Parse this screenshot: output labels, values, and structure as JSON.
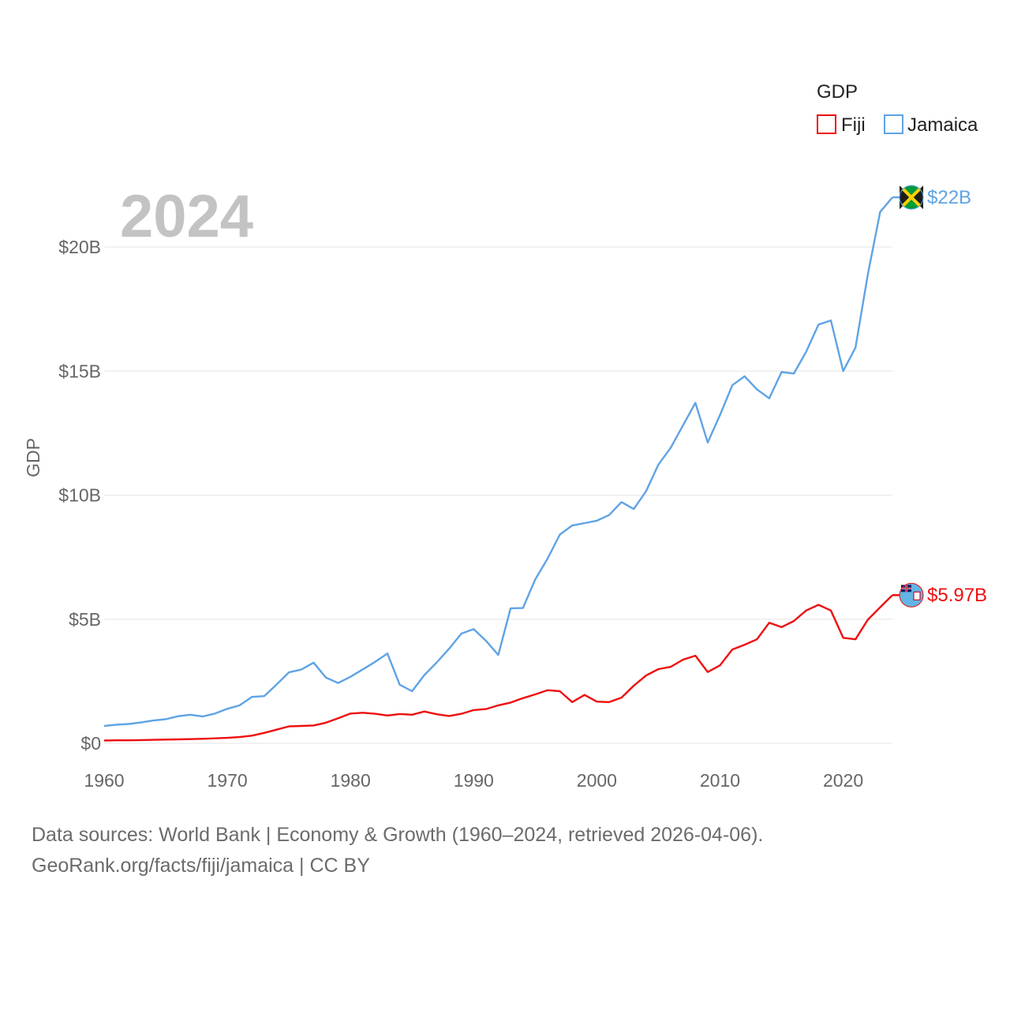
{
  "colors": {
    "fiji": "#ee0e0e",
    "jamaica": "#5fa3e4",
    "grid": "#e6e6e6",
    "tick": "#666666",
    "year": "#c3c3c3"
  },
  "chart_data": {
    "type": "line",
    "title": "",
    "year_label": "2024",
    "ylabel": "GDP",
    "xlabel": "",
    "xlim": [
      1960,
      2024
    ],
    "ylim": [
      0,
      22000000000
    ],
    "x_ticks": [
      1960,
      1970,
      1980,
      1990,
      2000,
      2010,
      2020
    ],
    "x_tick_labels": [
      "1960",
      "1970",
      "1980",
      "1990",
      "2000",
      "2010",
      "2020"
    ],
    "y_ticks": [
      0,
      5000000000,
      10000000000,
      15000000000,
      20000000000
    ],
    "y_tick_labels": [
      "$0",
      "$5B",
      "$10B",
      "$15B",
      "$20B"
    ],
    "legend": {
      "title": "GDP",
      "position": "top-right",
      "entries": [
        "Fiji",
        "Jamaica"
      ]
    },
    "x": [
      1960,
      1961,
      1962,
      1963,
      1964,
      1965,
      1966,
      1967,
      1968,
      1969,
      1970,
      1971,
      1972,
      1973,
      1974,
      1975,
      1976,
      1977,
      1978,
      1979,
      1980,
      1981,
      1982,
      1983,
      1984,
      1985,
      1986,
      1987,
      1988,
      1989,
      1990,
      1991,
      1992,
      1993,
      1994,
      1995,
      1996,
      1997,
      1998,
      1999,
      2000,
      2001,
      2002,
      2003,
      2004,
      2005,
      2006,
      2007,
      2008,
      2009,
      2010,
      2011,
      2012,
      2013,
      2014,
      2015,
      2016,
      2017,
      2018,
      2019,
      2020,
      2021,
      2022,
      2023,
      2024
    ],
    "series": [
      {
        "name": "Fiji",
        "color_key": "fiji",
        "end_label": "$5.97B",
        "flag": "fiji-flag-icon",
        "values": [
          0.11,
          0.12,
          0.12,
          0.13,
          0.14,
          0.15,
          0.16,
          0.17,
          0.18,
          0.2,
          0.22,
          0.25,
          0.31,
          0.42,
          0.55,
          0.68,
          0.7,
          0.72,
          0.83,
          1.01,
          1.2,
          1.23,
          1.19,
          1.12,
          1.18,
          1.15,
          1.28,
          1.17,
          1.1,
          1.19,
          1.34,
          1.38,
          1.53,
          1.64,
          1.82,
          1.97,
          2.14,
          2.1,
          1.66,
          1.95,
          1.68,
          1.66,
          1.84,
          2.32,
          2.73,
          2.99,
          3.08,
          3.37,
          3.53,
          2.87,
          3.14,
          3.78,
          3.97,
          4.19,
          4.86,
          4.68,
          4.93,
          5.35,
          5.58,
          5.35,
          4.25,
          4.19,
          4.98,
          5.48,
          5.97
        ]
      },
      {
        "name": "Jamaica",
        "color_key": "jamaica",
        "end_label": "$22B",
        "flag": "jamaica-flag-icon",
        "values": [
          0.7,
          0.75,
          0.78,
          0.84,
          0.92,
          0.97,
          1.09,
          1.15,
          1.08,
          1.2,
          1.39,
          1.53,
          1.87,
          1.9,
          2.37,
          2.86,
          2.97,
          3.25,
          2.65,
          2.43,
          2.68,
          2.98,
          3.28,
          3.62,
          2.36,
          2.1,
          2.75,
          3.26,
          3.81,
          4.42,
          4.6,
          4.13,
          3.56,
          5.44,
          5.45,
          6.6,
          7.44,
          8.41,
          8.78,
          8.87,
          8.97,
          9.2,
          9.72,
          9.44,
          10.16,
          11.23,
          11.91,
          12.81,
          13.72,
          12.12,
          13.23,
          14.43,
          14.79,
          14.26,
          13.9,
          14.96,
          14.9,
          15.78,
          16.87,
          17.04,
          15,
          15.95,
          18.89,
          21.41,
          22
        ]
      }
    ]
  },
  "footer": {
    "line1": "Data sources: World Bank | Economy & Growth (1960–2024, retrieved 2026-04-06).",
    "line2": "GeoRank.org/facts/fiji/jamaica | CC BY"
  }
}
